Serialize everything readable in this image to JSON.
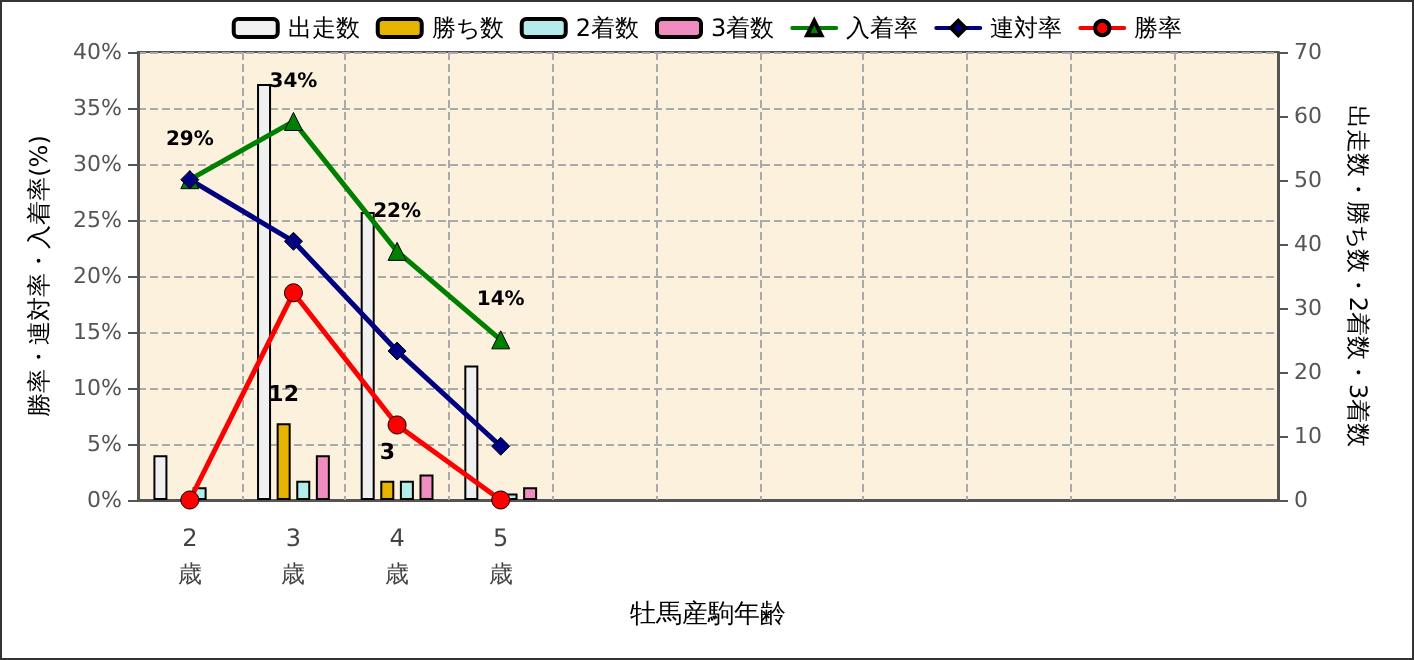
{
  "chart_data": {
    "type": "bar",
    "xlabel": "牡馬産駒年齢",
    "ylabel": "勝率・連対率・入着率(%)",
    "y2label": "出走数・勝ち数・2着数・3着数",
    "categories": [
      "2歳",
      "3歳",
      "4歳",
      "5歳",
      null,
      null,
      null,
      null,
      null,
      null,
      null
    ],
    "series": [
      {
        "name": "出走数",
        "axis": "y2",
        "color": "#f0f0f0",
        "values": [
          7,
          65,
          45,
          21,
          null,
          null,
          null,
          null,
          null,
          null,
          null
        ]
      },
      {
        "name": "勝ち数",
        "axis": "y2",
        "color": "#e6b400",
        "values": [
          0,
          12,
          3,
          0,
          null,
          null,
          null,
          null,
          null,
          null,
          null
        ],
        "value_labels": [
          null,
          "12",
          "3",
          null,
          null,
          null,
          null,
          null,
          null,
          null,
          null
        ]
      },
      {
        "name": "2着数",
        "axis": "y2",
        "color": "#b4ecec",
        "values": [
          2,
          3,
          3,
          1,
          null,
          null,
          null,
          null,
          null,
          null,
          null
        ]
      },
      {
        "name": "3着数",
        "axis": "y2",
        "color": "#f08cc0",
        "values": [
          0,
          7,
          4,
          2,
          null,
          null,
          null,
          null,
          null,
          null,
          null
        ]
      },
      {
        "name": "入着率",
        "type": "line",
        "marker": "triangle",
        "color": "#008000",
        "values": [
          28.6,
          33.8,
          22.2,
          14.3,
          null,
          null,
          null,
          null,
          null,
          null,
          null
        ],
        "value_labels": [
          "29%",
          "34%",
          "22%",
          "14%",
          null,
          null,
          null,
          null,
          null,
          null,
          null
        ]
      },
      {
        "name": "連対率",
        "type": "line",
        "marker": "diamond",
        "color": "#000080",
        "values": [
          28.6,
          23.1,
          13.3,
          4.8,
          null,
          null,
          null,
          null,
          null,
          null,
          null
        ]
      },
      {
        "name": "勝率",
        "type": "line",
        "marker": "circle",
        "color": "#ff0000",
        "values": [
          0,
          18.5,
          6.7,
          0,
          null,
          null,
          null,
          null,
          null,
          null,
          null
        ]
      }
    ],
    "ylim": [
      0,
      40
    ],
    "yticks": [
      {
        "value": 0,
        "label": "0%"
      },
      {
        "value": 5,
        "label": "5%"
      },
      {
        "value": 10,
        "label": "10%"
      },
      {
        "value": 15,
        "label": "15%"
      },
      {
        "value": 20,
        "label": "20%"
      },
      {
        "value": 25,
        "label": "25%"
      },
      {
        "value": 30,
        "label": "30%"
      },
      {
        "value": 35,
        "label": "35%"
      },
      {
        "value": 40,
        "label": "40%"
      }
    ],
    "y2lim": [
      0,
      70
    ],
    "y2ticks": [
      0,
      10,
      20,
      30,
      40,
      50,
      60,
      70
    ],
    "grid": true,
    "legend": "top"
  }
}
